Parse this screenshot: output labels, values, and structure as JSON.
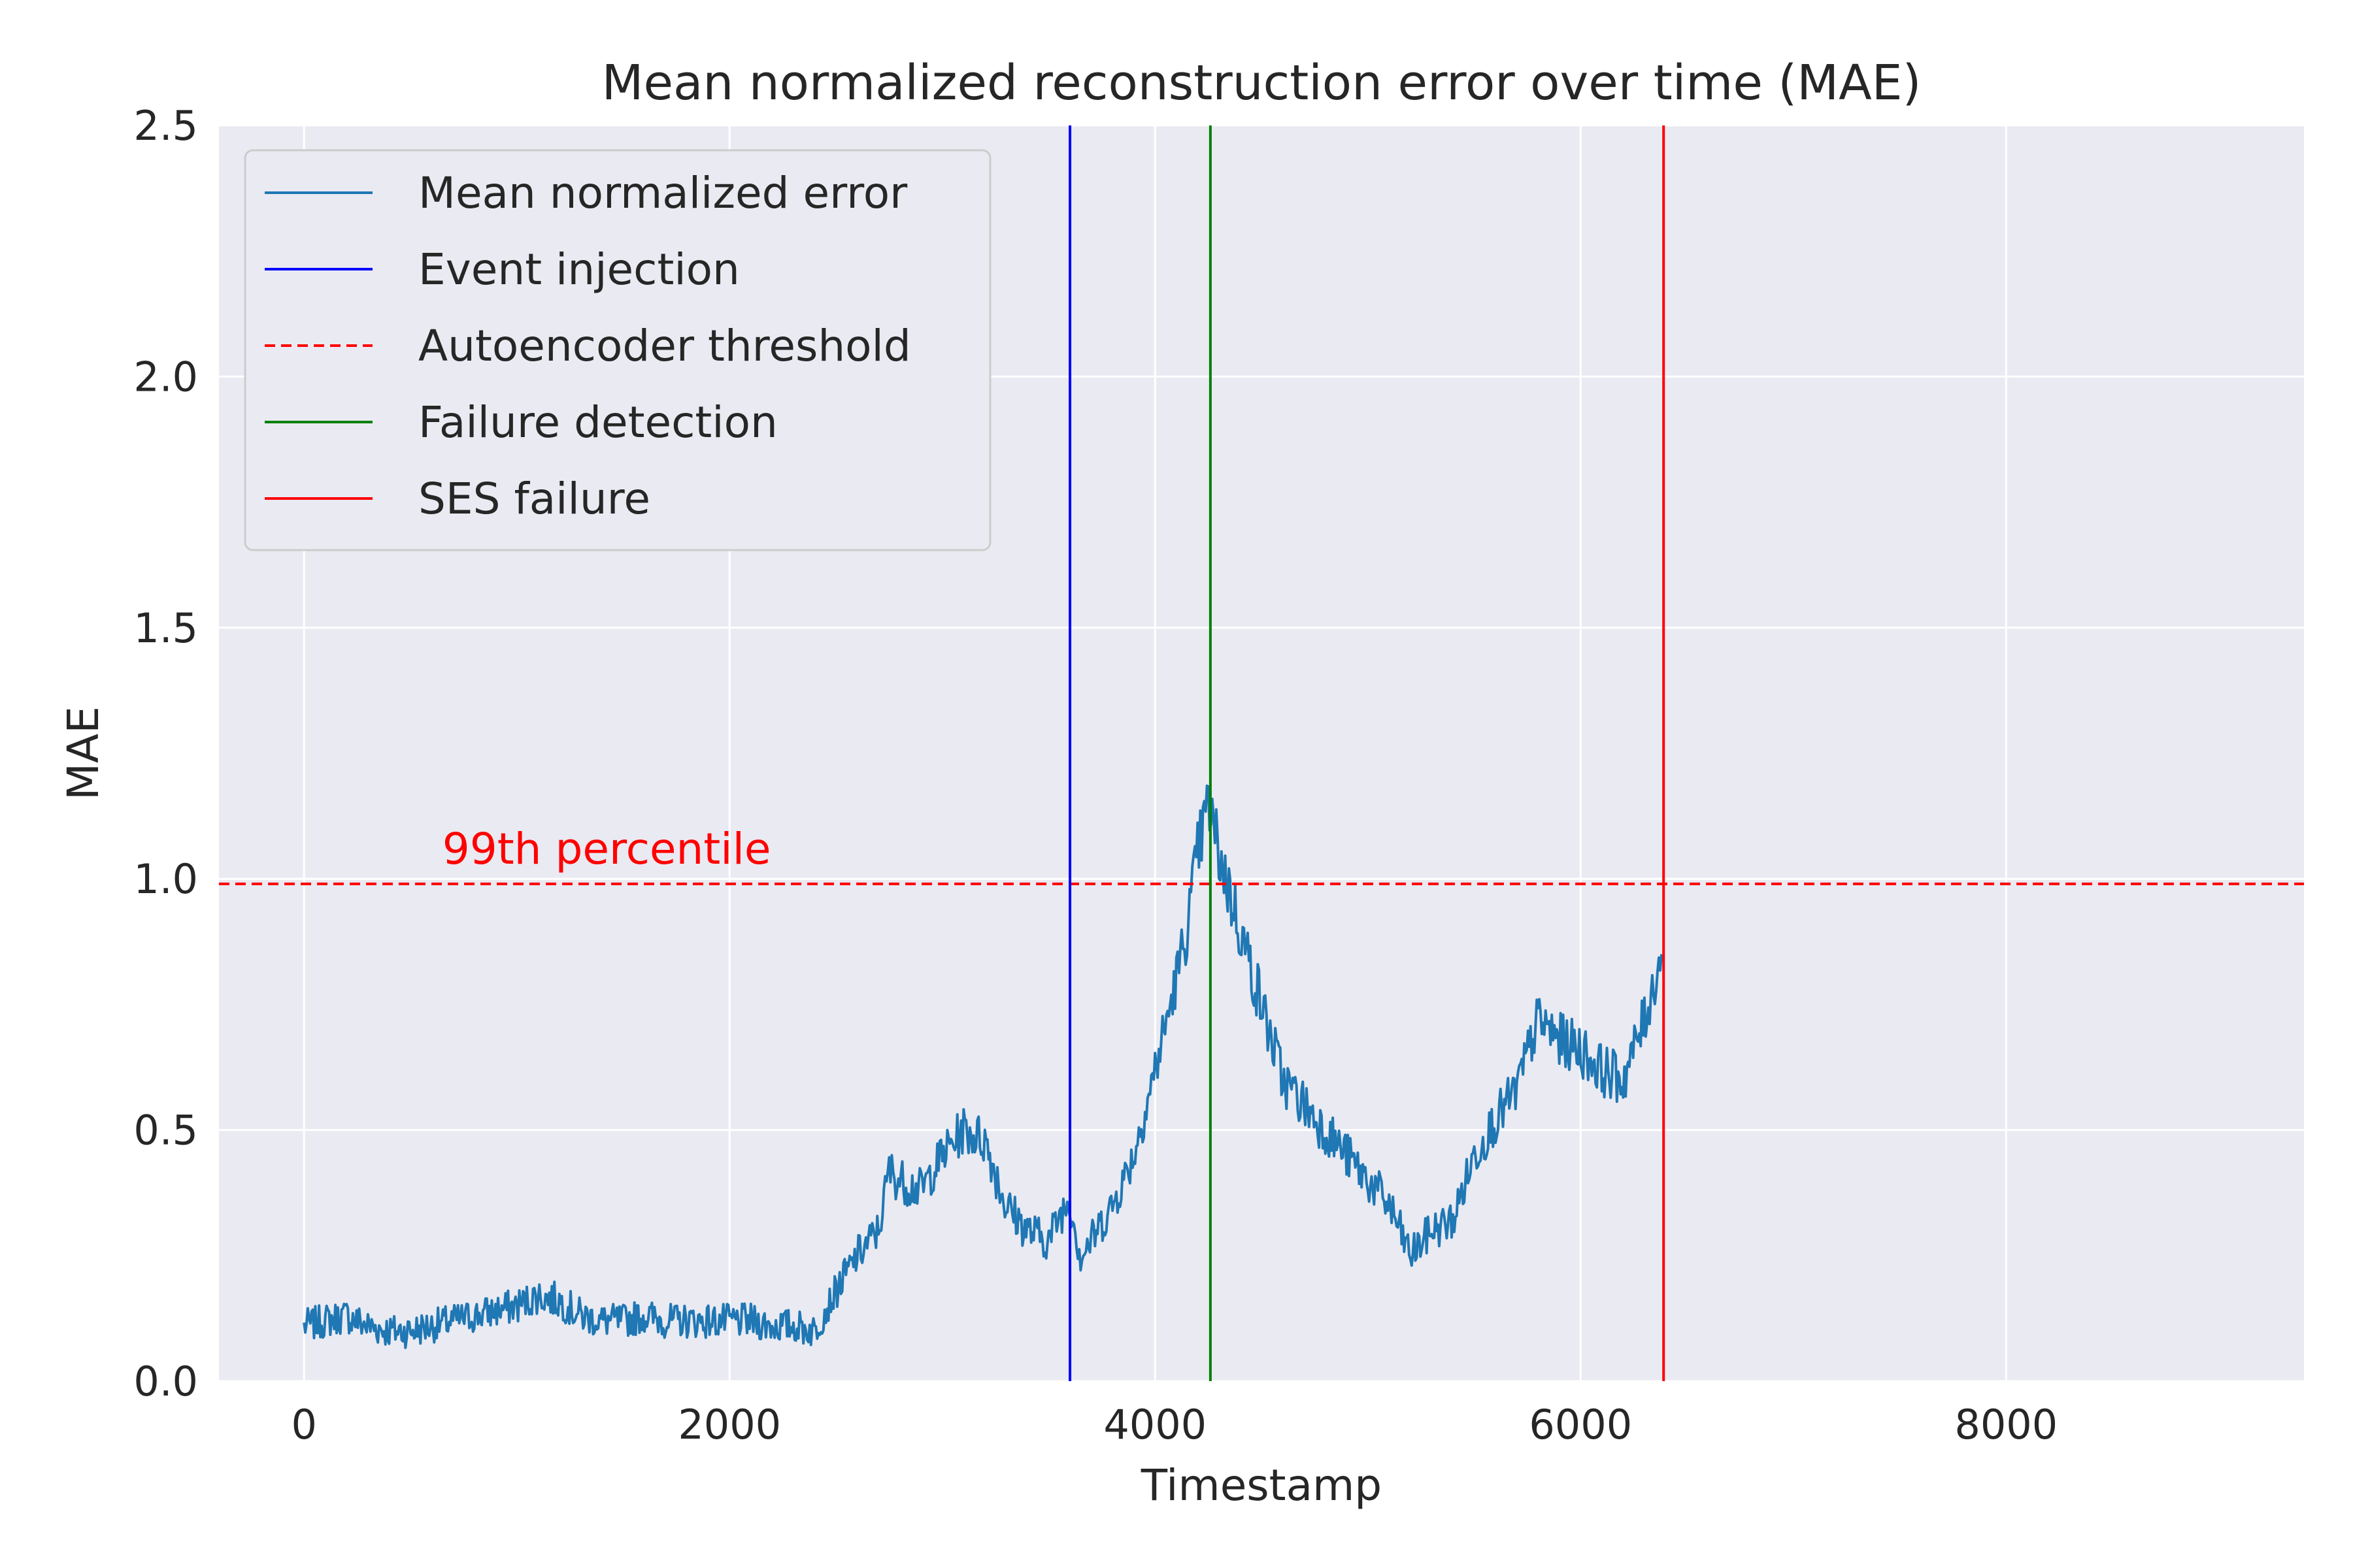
{
  "chart_data": {
    "type": "line",
    "title": "Mean normalized reconstruction error over time (MAE)",
    "xlabel": "Timestamp",
    "ylabel": "MAE",
    "xlim": [
      -400,
      9400
    ],
    "ylim": [
      0.0,
      2.5
    ],
    "xticks": [
      0,
      2000,
      4000,
      6000,
      8000
    ],
    "xtick_labels": [
      "0",
      "2000",
      "4000",
      "6000",
      "8000"
    ],
    "yticks": [
      0.0,
      0.5,
      1.0,
      1.5,
      2.0,
      2.5
    ],
    "ytick_labels": [
      "0.0",
      "0.5",
      "1.0",
      "1.5",
      "2.0",
      "2.5"
    ],
    "grid": true,
    "legend_position": "upper-left",
    "series": [
      {
        "name": "Mean normalized error",
        "color": "#1f77b4",
        "noise_amplitude": 0.03,
        "x": [
          0,
          100,
          200,
          300,
          400,
          500,
          600,
          700,
          800,
          900,
          1000,
          1100,
          1200,
          1300,
          1400,
          1500,
          1600,
          1700,
          1800,
          1900,
          2000,
          2100,
          2200,
          2300,
          2400,
          2500,
          2600,
          2700,
          2750,
          2800,
          2900,
          3000,
          3100,
          3200,
          3300,
          3400,
          3500,
          3550,
          3600,
          3650,
          3700,
          3800,
          3900,
          4000,
          4100,
          4150,
          4200,
          4250,
          4300,
          4400,
          4500,
          4600,
          4700,
          4800,
          4900,
          5000,
          5100,
          5200,
          5300,
          5400,
          5500,
          5600,
          5700,
          5800,
          5900,
          6000,
          6100,
          6200,
          6300,
          6380
        ],
        "y": [
          0.11,
          0.12,
          0.13,
          0.11,
          0.1,
          0.1,
          0.11,
          0.12,
          0.13,
          0.14,
          0.15,
          0.17,
          0.16,
          0.13,
          0.12,
          0.12,
          0.13,
          0.12,
          0.12,
          0.12,
          0.12,
          0.12,
          0.11,
          0.11,
          0.1,
          0.18,
          0.25,
          0.3,
          0.42,
          0.4,
          0.38,
          0.45,
          0.5,
          0.48,
          0.35,
          0.3,
          0.28,
          0.33,
          0.36,
          0.25,
          0.28,
          0.35,
          0.45,
          0.62,
          0.8,
          0.9,
          1.05,
          1.15,
          1.05,
          0.9,
          0.75,
          0.6,
          0.55,
          0.5,
          0.45,
          0.4,
          0.35,
          0.25,
          0.3,
          0.32,
          0.45,
          0.52,
          0.58,
          0.72,
          0.68,
          0.66,
          0.62,
          0.6,
          0.72,
          0.85
        ]
      }
    ],
    "vertical_lines": [
      {
        "name": "Event injection",
        "x": 3600,
        "color": "#0000ff",
        "style": "solid"
      },
      {
        "name": "Failure detection",
        "x": 4260,
        "color": "#008000",
        "style": "solid"
      },
      {
        "name": "SES failure",
        "x": 6390,
        "color": "#ff0000",
        "style": "solid"
      }
    ],
    "horizontal_lines": [
      {
        "name": "Autoencoder threshold",
        "y": 0.99,
        "color": "#ff0000",
        "style": "dashed"
      }
    ],
    "legend": [
      {
        "label": "Mean normalized error",
        "color": "#1f77b4",
        "style": "solid"
      },
      {
        "label": "Event injection",
        "color": "#0000ff",
        "style": "solid"
      },
      {
        "label": "Autoencoder threshold",
        "color": "#ff0000",
        "style": "dashed"
      },
      {
        "label": "Failure detection",
        "color": "#008000",
        "style": "solid"
      },
      {
        "label": "SES failure",
        "color": "#ff0000",
        "style": "solid"
      }
    ],
    "annotations": [
      {
        "text": "99th percentile",
        "x": 650,
        "y": 1.03,
        "color": "#ff0000"
      }
    ]
  }
}
